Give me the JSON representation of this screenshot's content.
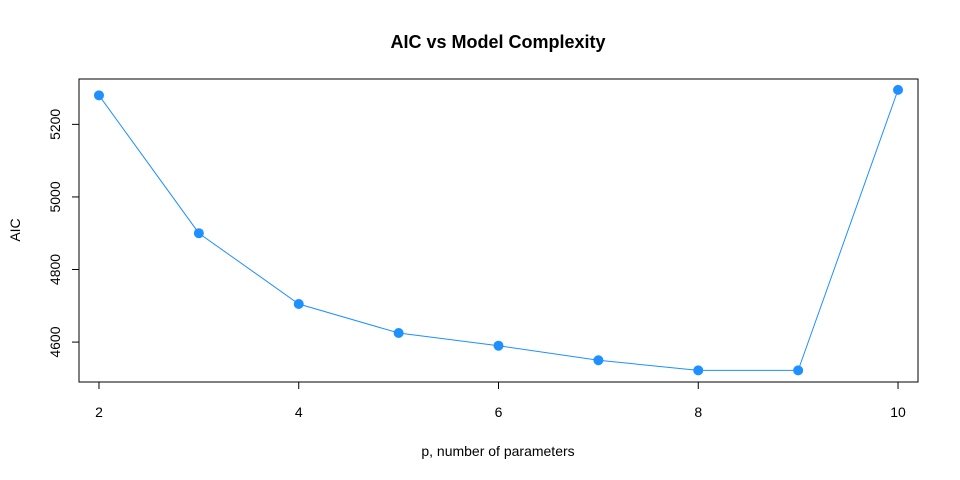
{
  "chart_data": {
    "type": "line",
    "title": "AIC vs Model Complexity",
    "xlabel": "p, number of parameters",
    "ylabel": "AIC",
    "x": [
      2,
      3,
      4,
      5,
      6,
      7,
      8,
      9,
      10
    ],
    "series": [
      {
        "values": [
          5280,
          4900,
          4705,
          4625,
          4590,
          4550,
          4522,
          4522,
          5295
        ]
      }
    ],
    "xlim": [
      1.8,
      10.2
    ],
    "ylim": [
      4490,
      5325
    ],
    "x_ticks": [
      2,
      4,
      6,
      8,
      10
    ],
    "x_tick_labels": [
      "2",
      "4",
      "6",
      "8",
      "10"
    ],
    "y_ticks": [
      4600,
      4800,
      5000,
      5200
    ],
    "y_tick_labels": [
      "4600",
      "4800",
      "5000",
      "5200"
    ],
    "grid": false,
    "colors": {
      "line": "#1e90ff",
      "point": "#1e90ff",
      "axis": "#000000"
    }
  }
}
